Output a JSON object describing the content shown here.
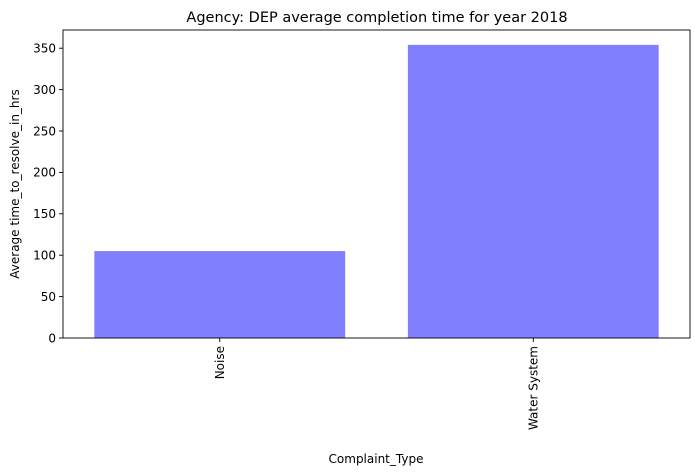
{
  "chart_data": {
    "type": "bar",
    "title": "Agency: DEP average completion time for year 2018",
    "xlabel": "Complaint_Type",
    "ylabel": "Average time_to_resolve_in_hrs",
    "categories": [
      "Noise",
      "Water System"
    ],
    "values": [
      105,
      354
    ],
    "ylim": [
      0,
      372
    ],
    "yticks": [
      0,
      50,
      100,
      150,
      200,
      250,
      300,
      350
    ],
    "bar_color": "#8080ff",
    "grid": false,
    "legend": "none"
  }
}
